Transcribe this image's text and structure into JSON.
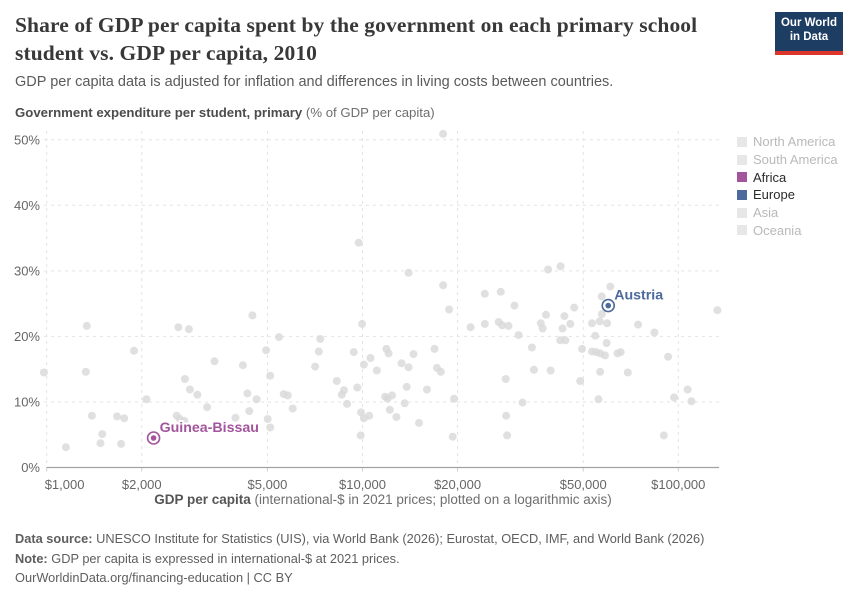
{
  "header": {
    "title": "Share of GDP per capita spent by the government on each primary school student vs. GDP per capita, 2010",
    "subtitle": "GDP per capita data is adjusted for inflation and differences in living costs between countries.",
    "logo": {
      "line1": "Our World",
      "line2": "in Data"
    }
  },
  "axis": {
    "y_title_bold": "Government expenditure per student, primary",
    "y_title_rest": " (% of GDP per capita)",
    "x_title_bold": "GDP per capita",
    "x_title_rest": " (international-$ in 2021 prices; plotted on a logarithmic axis)"
  },
  "legend": {
    "items": [
      {
        "label": "North America",
        "color": "#e7e7e7",
        "active": false
      },
      {
        "label": "South America",
        "color": "#e7e7e7",
        "active": false
      },
      {
        "label": "Africa",
        "color": "#a2559c",
        "active": true
      },
      {
        "label": "Europe",
        "color": "#4c6a9c",
        "active": true
      },
      {
        "label": "Asia",
        "color": "#e7e7e7",
        "active": false
      },
      {
        "label": "Oceania",
        "color": "#e7e7e7",
        "active": false
      }
    ]
  },
  "footer": {
    "datasource_label": "Data source:",
    "datasource_text": " UNESCO Institute for Statistics (UIS), via World Bank (2026); Eurostat, OECD, IMF, and World Bank (2026)",
    "note_label": "Note:",
    "note_text": " GDP per capita is expressed in international-$ at 2021 prices.",
    "link_text": "OurWorldinData.org/financing-education | CC BY"
  },
  "colors": {
    "africa": "#a2559c",
    "europe": "#4c6a9c",
    "gray_point": "#d8d8d8",
    "grid": "#e3e3e3",
    "axis_line": "#a3a3a3",
    "tick_nub": "#cfcfcf",
    "tick_text": "#666666",
    "muted_legend_text": "#b9b9b9",
    "logo_bg": "#1d3d63",
    "logo_red": "#dc352c"
  },
  "chart_data": {
    "type": "scatter",
    "title": "Share of GDP per capita spent by the government on each primary school student vs. GDP per capita, 2010",
    "xlabel": "GDP per capita (international-$ in 2021 prices; plotted on a logarithmic axis)",
    "ylabel": "Government expenditure per student, primary (% of GDP per capita)",
    "x_scale": "log",
    "xlim": [
      1000,
      134500
    ],
    "ylim": [
      0,
      51.3
    ],
    "grid": true,
    "legend_position": "right",
    "x_ticks": [
      {
        "value": 1000,
        "label": "$1,000"
      },
      {
        "value": 2000,
        "label": "$2,000"
      },
      {
        "value": 5000,
        "label": "$5,000"
      },
      {
        "value": 10000,
        "label": "$10,000"
      },
      {
        "value": 20000,
        "label": "$20,000"
      },
      {
        "value": 50000,
        "label": "$50,000"
      },
      {
        "value": 100000,
        "label": "$100,000"
      }
    ],
    "y_ticks": [
      {
        "value": 0,
        "label": "0%"
      },
      {
        "value": 10,
        "label": "10%"
      },
      {
        "value": 20,
        "label": "20%"
      },
      {
        "value": 30,
        "label": "30%"
      },
      {
        "value": 40,
        "label": "40%"
      },
      {
        "value": 50,
        "label": "50%"
      }
    ],
    "highlighted": [
      {
        "name": "Guinea-Bissau",
        "region": "Africa",
        "color": "#a2559c",
        "gdp_per_capita": 2180,
        "expenditure_pct": 4.5
      },
      {
        "name": "Austria",
        "region": "Europe",
        "color": "#4c6a9c",
        "gdp_per_capita": 60000,
        "expenditure_pct": 24.7
      }
    ],
    "other_countries_series": {
      "name": "Unhighlighted countries",
      "color": "#d8d8d8",
      "points_format": [
        "gdp_per_capita_intl_dollar",
        "expenditure_pct_of_gdp_per_capita"
      ],
      "points": [
        [
          18000,
          50.9
        ],
        [
          9730,
          34.3
        ],
        [
          14000,
          29.7
        ],
        [
          18000,
          27.8
        ],
        [
          24400,
          26.5
        ],
        [
          27400,
          26.8
        ],
        [
          38700,
          30.2
        ],
        [
          42400,
          30.7
        ],
        [
          60900,
          27.6
        ],
        [
          57200,
          26.1
        ],
        [
          1340,
          21.6
        ],
        [
          1890,
          17.8
        ],
        [
          980,
          14.5
        ],
        [
          1330,
          14.6
        ],
        [
          2610,
          21.4
        ],
        [
          2820,
          21.1
        ],
        [
          4480,
          23.2
        ],
        [
          4950,
          17.9
        ],
        [
          3400,
          16.2
        ],
        [
          4180,
          15.6
        ],
        [
          2740,
          13.5
        ],
        [
          2840,
          11.9
        ],
        [
          3000,
          11.1
        ],
        [
          2070,
          10.4
        ],
        [
          3220,
          9.2
        ],
        [
          4320,
          11.3
        ],
        [
          4620,
          10.4
        ],
        [
          4380,
          8.6
        ],
        [
          1390,
          7.9
        ],
        [
          1670,
          7.8
        ],
        [
          1760,
          7.5
        ],
        [
          2580,
          7.9
        ],
        [
          2640,
          7.4
        ],
        [
          2730,
          7.1
        ],
        [
          3960,
          7.6
        ],
        [
          5010,
          7.4
        ],
        [
          1500,
          5.1
        ],
        [
          1480,
          3.7
        ],
        [
          1720,
          3.6
        ],
        [
          1150,
          3.1
        ],
        [
          18800,
          24.1
        ],
        [
          9970,
          21.9
        ],
        [
          22000,
          21.4
        ],
        [
          24400,
          21.9
        ],
        [
          27000,
          22.2
        ],
        [
          27700,
          21.7
        ],
        [
          5440,
          19.9
        ],
        [
          7350,
          19.6
        ],
        [
          7270,
          17.7
        ],
        [
          9380,
          17.6
        ],
        [
          11900,
          18.1
        ],
        [
          12100,
          17.4
        ],
        [
          10600,
          16.7
        ],
        [
          14500,
          17.3
        ],
        [
          7080,
          15.4
        ],
        [
          10100,
          15.7
        ],
        [
          11100,
          14.8
        ],
        [
          13300,
          15.9
        ],
        [
          14000,
          15.3
        ],
        [
          16900,
          18.1
        ],
        [
          17200,
          15.2
        ],
        [
          17700,
          14.6
        ],
        [
          5100,
          14.0
        ],
        [
          8290,
          13.2
        ],
        [
          8740,
          11.8
        ],
        [
          8590,
          11.1
        ],
        [
          9630,
          12.2
        ],
        [
          13800,
          12.3
        ],
        [
          16000,
          11.9
        ],
        [
          5630,
          11.2
        ],
        [
          5800,
          11.0
        ],
        [
          8930,
          9.7
        ],
        [
          11800,
          10.8
        ],
        [
          12000,
          10.5
        ],
        [
          12400,
          11.0
        ],
        [
          13600,
          9.8
        ],
        [
          19500,
          10.5
        ],
        [
          6010,
          9.0
        ],
        [
          12200,
          8.8
        ],
        [
          12800,
          7.7
        ],
        [
          9890,
          8.4
        ],
        [
          10100,
          7.5
        ],
        [
          10500,
          7.9
        ],
        [
          15100,
          6.8
        ],
        [
          9870,
          4.9
        ],
        [
          19300,
          4.7
        ],
        [
          5100,
          6.1
        ],
        [
          30300,
          24.7
        ],
        [
          133000,
          24.0
        ],
        [
          46800,
          24.4
        ],
        [
          57300,
          23.4
        ],
        [
          38100,
          23.3
        ],
        [
          43600,
          23.1
        ],
        [
          29000,
          21.6
        ],
        [
          36700,
          22.0
        ],
        [
          37200,
          21.2
        ],
        [
          43000,
          21.2
        ],
        [
          45500,
          21.9
        ],
        [
          53300,
          22.0
        ],
        [
          56400,
          22.3
        ],
        [
          59500,
          22.0
        ],
        [
          74600,
          21.8
        ],
        [
          84000,
          20.6
        ],
        [
          31200,
          20.2
        ],
        [
          34400,
          18.3
        ],
        [
          42300,
          19.4
        ],
        [
          43900,
          19.4
        ],
        [
          49600,
          18.1
        ],
        [
          54600,
          20.1
        ],
        [
          59300,
          19.0
        ],
        [
          53300,
          17.7
        ],
        [
          55000,
          17.6
        ],
        [
          56600,
          17.4
        ],
        [
          58600,
          17.1
        ],
        [
          64200,
          17.4
        ],
        [
          65700,
          17.6
        ],
        [
          92800,
          16.9
        ],
        [
          34900,
          14.9
        ],
        [
          39400,
          14.8
        ],
        [
          28400,
          13.5
        ],
        [
          48900,
          13.2
        ],
        [
          56600,
          14.6
        ],
        [
          69200,
          14.5
        ],
        [
          107000,
          11.9
        ],
        [
          32100,
          9.9
        ],
        [
          55900,
          10.4
        ],
        [
          97000,
          10.7
        ],
        [
          110000,
          10.1
        ],
        [
          28500,
          7.9
        ],
        [
          28700,
          4.9
        ],
        [
          90000,
          4.9
        ]
      ]
    }
  }
}
